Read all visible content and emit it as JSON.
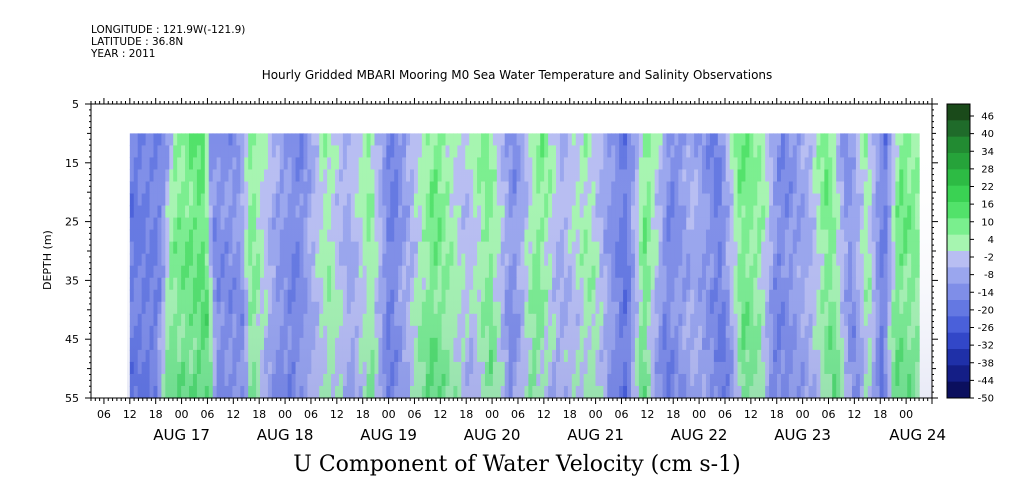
{
  "header": {
    "longitude": "LONGITUDE : 121.9W(-121.9)",
    "latitude": "LATITUDE : 36.8N",
    "year": "YEAR : 2011"
  },
  "chart_data": {
    "type": "heatmap",
    "title": "Hourly Gridded MBARI Mooring M0 Sea Water Temperature and Salinity Observations",
    "caption": "U Component of Water Velocity (cm s-1)",
    "ylabel": "DEPTH (m)",
    "yticks": [
      5,
      15,
      25,
      35,
      45,
      55
    ],
    "ylim": [
      5,
      55
    ],
    "y_inverted": true,
    "data_depth_range": [
      10,
      55
    ],
    "x_start": "2011-08-16T03:00",
    "x_end": "2011-08-24T06:00",
    "data_time_range": [
      "2011-08-16T12:00",
      "2011-08-24T03:00"
    ],
    "x_hour_labels": [
      "06",
      "12",
      "18",
      "00",
      "06",
      "12",
      "18",
      "00",
      "06",
      "12",
      "18",
      "00",
      "06",
      "12",
      "18",
      "00",
      "06",
      "12",
      "18",
      "00",
      "06",
      "12",
      "18",
      "00",
      "06",
      "12",
      "18",
      "00",
      "06",
      "12",
      "18",
      "00"
    ],
    "x_day_labels": [
      "AUG 17",
      "AUG 18",
      "AUG 19",
      "AUG 20",
      "AUG 21",
      "AUG 22",
      "AUG 23",
      "AUG 24"
    ],
    "colorbar": {
      "min": -50,
      "max": 50,
      "labels": [
        "46",
        "40",
        "34",
        "28",
        "22",
        "16",
        "10",
        "4",
        "-2",
        "-8",
        "-14",
        "-20",
        "-26",
        "-32",
        "-38",
        "-44",
        "-50"
      ],
      "colors": [
        "#1a4a1a",
        "#1f6b2a",
        "#228b32",
        "#26a33a",
        "#2dbb44",
        "#3ad253",
        "#52e26a",
        "#7aef8e",
        "#a6f5b0",
        "#b8bef2",
        "#9aa6ee",
        "#7f8ee8",
        "#6478e2",
        "#4a60da",
        "#3247c8",
        "#1f30a8",
        "#141e86",
        "#0b0f5e"
      ],
      "scale_note": "-50"
    },
    "bands": [
      {
        "t": 0.0,
        "v": -18
      },
      {
        "t": 0.04,
        "v": -16
      },
      {
        "t": 0.055,
        "v": 6
      },
      {
        "t": 0.09,
        "v": 12
      },
      {
        "t": 0.1,
        "v": -14
      },
      {
        "t": 0.135,
        "v": -12
      },
      {
        "t": 0.15,
        "v": 8
      },
      {
        "t": 0.19,
        "v": -10
      },
      {
        "t": 0.215,
        "v": -16
      },
      {
        "t": 0.245,
        "v": 4
      },
      {
        "t": 0.27,
        "v": -8
      },
      {
        "t": 0.3,
        "v": 6
      },
      {
        "t": 0.33,
        "v": -18
      },
      {
        "t": 0.36,
        "v": -4
      },
      {
        "t": 0.385,
        "v": 10
      },
      {
        "t": 0.42,
        "v": -4
      },
      {
        "t": 0.45,
        "v": 8
      },
      {
        "t": 0.485,
        "v": -14
      },
      {
        "t": 0.52,
        "v": 8
      },
      {
        "t": 0.545,
        "v": -6
      },
      {
        "t": 0.575,
        "v": 4
      },
      {
        "t": 0.6,
        "v": -10
      },
      {
        "t": 0.625,
        "v": -20
      },
      {
        "t": 0.655,
        "v": 10
      },
      {
        "t": 0.685,
        "v": -16
      },
      {
        "t": 0.71,
        "v": -6
      },
      {
        "t": 0.74,
        "v": -18
      },
      {
        "t": 0.77,
        "v": 10
      },
      {
        "t": 0.8,
        "v": 4
      },
      {
        "t": 0.825,
        "v": -16
      },
      {
        "t": 0.86,
        "v": -6
      },
      {
        "t": 0.88,
        "v": 10
      },
      {
        "t": 0.905,
        "v": -14
      },
      {
        "t": 0.93,
        "v": 4
      },
      {
        "t": 0.955,
        "v": -20
      },
      {
        "t": 0.975,
        "v": 10
      },
      {
        "t": 1.0,
        "v": 6
      }
    ]
  }
}
